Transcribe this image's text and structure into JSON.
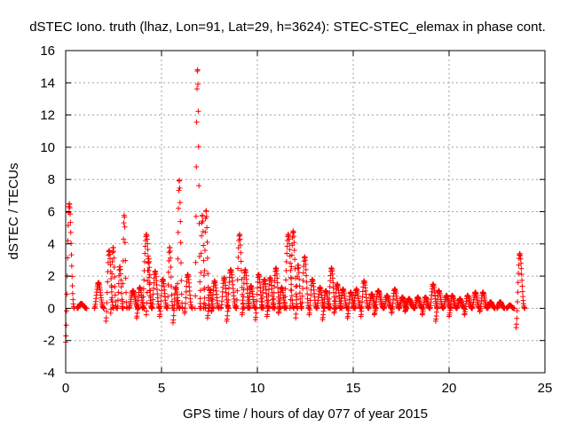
{
  "chart_data": {
    "type": "scatter",
    "title": "dSTEC Iono. truth (lhaz, Lon=91, Lat=29, h=3624): STEC-STEC_elemax in phase cont.",
    "xlabel": "GPS time / hours of day 077 of year 2015",
    "ylabel": "dSTEC  / TECUs",
    "xlim": [
      0,
      25
    ],
    "ylim": [
      -4,
      16
    ],
    "x_ticks": [
      0,
      5,
      10,
      15,
      20,
      25
    ],
    "y_ticks": [
      -4,
      -2,
      0,
      2,
      4,
      6,
      8,
      10,
      12,
      14,
      16
    ],
    "x_tick_labels": [
      "0",
      "5",
      "10",
      "15",
      "20",
      "25"
    ],
    "y_tick_labels": [
      "-4",
      "-2",
      "0",
      "2",
      "4",
      "6",
      "8",
      "10",
      "12",
      "14",
      "16"
    ],
    "grid": true,
    "marker": "+",
    "color": "#ff0000",
    "arcs": [
      {
        "t0": 0.0,
        "t1": 0.45,
        "y0": -2.1,
        "y1": 6.5
      },
      {
        "t0": 0.6,
        "t1": 1.1,
        "y0": 0.0,
        "y1": 0.3
      },
      {
        "t0": 1.5,
        "t1": 2.0,
        "y0": 0.0,
        "y1": 1.6
      },
      {
        "t0": 2.1,
        "t1": 2.5,
        "y0": -0.8,
        "y1": 3.6
      },
      {
        "t0": 2.35,
        "t1": 2.65,
        "y0": -0.3,
        "y1": 3.8
      },
      {
        "t0": 2.7,
        "t1": 3.0,
        "y0": 0.0,
        "y1": 2.6
      },
      {
        "t0": 2.95,
        "t1": 3.2,
        "y0": 0.0,
        "y1": 5.8
      },
      {
        "t0": 3.3,
        "t1": 3.8,
        "y0": 0.0,
        "y1": 1.1
      },
      {
        "t0": 3.7,
        "t1": 4.1,
        "y0": -0.6,
        "y1": 1.3
      },
      {
        "t0": 4.0,
        "t1": 4.5,
        "y0": 0.0,
        "y1": 4.6
      },
      {
        "t0": 4.2,
        "t1": 4.5,
        "y0": -0.4,
        "y1": 3.1
      },
      {
        "t0": 4.5,
        "t1": 4.9,
        "y0": 0.0,
        "y1": 2.3
      },
      {
        "t0": 4.9,
        "t1": 5.3,
        "y0": -0.5,
        "y1": 1.8
      },
      {
        "t0": 5.3,
        "t1": 5.6,
        "y0": 0.0,
        "y1": 3.8
      },
      {
        "t0": 5.6,
        "t1": 5.95,
        "y0": -0.9,
        "y1": 1.3
      },
      {
        "t0": 5.8,
        "t1": 6.1,
        "y0": 0.0,
        "y1": 8.0
      },
      {
        "t0": 6.2,
        "t1": 6.6,
        "y0": -0.3,
        "y1": 2.1
      },
      {
        "t0": 6.75,
        "t1": 7.05,
        "y0": 0.0,
        "y1": 14.9
      },
      {
        "t0": 7.0,
        "t1": 7.3,
        "y0": 0.0,
        "y1": 5.8
      },
      {
        "t0": 7.2,
        "t1": 7.5,
        "y0": 0.0,
        "y1": 6.1
      },
      {
        "t0": 7.4,
        "t1": 7.7,
        "y0": -0.6,
        "y1": 1.2
      },
      {
        "t0": 7.6,
        "t1": 8.0,
        "y0": -0.2,
        "y1": 1.7
      },
      {
        "t0": 8.1,
        "t1": 8.5,
        "y0": 0.0,
        "y1": 1.9
      },
      {
        "t0": 8.4,
        "t1": 8.9,
        "y0": -0.8,
        "y1": 2.4
      },
      {
        "t0": 8.9,
        "t1": 9.3,
        "y0": 0.0,
        "y1": 4.6
      },
      {
        "t0": 9.2,
        "t1": 9.6,
        "y0": -0.4,
        "y1": 2.4
      },
      {
        "t0": 9.5,
        "t1": 9.9,
        "y0": 0.0,
        "y1": 1.4
      },
      {
        "t0": 9.9,
        "t1": 10.3,
        "y0": -0.7,
        "y1": 2.1
      },
      {
        "t0": 10.2,
        "t1": 10.6,
        "y0": 0.0,
        "y1": 1.8
      },
      {
        "t0": 10.5,
        "t1": 10.9,
        "y0": -0.5,
        "y1": 1.9
      },
      {
        "t0": 10.8,
        "t1": 11.2,
        "y0": 0.0,
        "y1": 2.5
      },
      {
        "t0": 11.1,
        "t1": 11.5,
        "y0": -0.3,
        "y1": 1.3
      },
      {
        "t0": 11.4,
        "t1": 11.9,
        "y0": 0.0,
        "y1": 4.6
      },
      {
        "t0": 11.7,
        "t1": 12.1,
        "y0": 0.0,
        "y1": 4.8
      },
      {
        "t0": 12.0,
        "t1": 12.3,
        "y0": -0.6,
        "y1": 2.7
      },
      {
        "t0": 12.3,
        "t1": 12.7,
        "y0": 0.0,
        "y1": 3.2
      },
      {
        "t0": 12.7,
        "t1": 13.1,
        "y0": -0.4,
        "y1": 1.8
      },
      {
        "t0": 13.1,
        "t1": 13.5,
        "y0": 0.0,
        "y1": 1.3
      },
      {
        "t0": 13.4,
        "t1": 13.8,
        "y0": -0.7,
        "y1": 1.1
      },
      {
        "t0": 13.7,
        "t1": 14.1,
        "y0": 0.0,
        "y1": 2.5
      },
      {
        "t0": 14.0,
        "t1": 14.4,
        "y0": -0.3,
        "y1": 1.5
      },
      {
        "t0": 14.3,
        "t1": 14.7,
        "y0": 0.0,
        "y1": 1.2
      },
      {
        "t0": 14.7,
        "t1": 15.1,
        "y0": -0.6,
        "y1": 1.0
      },
      {
        "t0": 15.0,
        "t1": 15.4,
        "y0": 0.0,
        "y1": 1.2
      },
      {
        "t0": 15.4,
        "t1": 15.8,
        "y0": -0.5,
        "y1": 1.7
      },
      {
        "t0": 15.8,
        "t1": 16.2,
        "y0": 0.0,
        "y1": 0.9
      },
      {
        "t0": 16.1,
        "t1": 16.6,
        "y0": -0.4,
        "y1": 1.1
      },
      {
        "t0": 16.6,
        "t1": 17.0,
        "y0": 0.0,
        "y1": 0.8
      },
      {
        "t0": 17.0,
        "t1": 17.4,
        "y0": -0.3,
        "y1": 1.2
      },
      {
        "t0": 17.4,
        "t1": 17.8,
        "y0": 0.0,
        "y1": 0.7
      },
      {
        "t0": 17.7,
        "t1": 18.2,
        "y0": -0.2,
        "y1": 0.6
      },
      {
        "t0": 18.2,
        "t1": 18.6,
        "y0": 0.0,
        "y1": 0.7
      },
      {
        "t0": 18.6,
        "t1": 19.0,
        "y0": -0.4,
        "y1": 0.7
      },
      {
        "t0": 19.0,
        "t1": 19.4,
        "y0": 0.0,
        "y1": 1.5
      },
      {
        "t0": 19.3,
        "t1": 19.7,
        "y0": -0.8,
        "y1": 1.1
      },
      {
        "t0": 19.7,
        "t1": 20.1,
        "y0": 0.0,
        "y1": 0.8
      },
      {
        "t0": 20.0,
        "t1": 20.4,
        "y0": -0.5,
        "y1": 0.8
      },
      {
        "t0": 20.4,
        "t1": 20.8,
        "y0": 0.0,
        "y1": 0.6
      },
      {
        "t0": 20.8,
        "t1": 21.2,
        "y0": -0.4,
        "y1": 0.8
      },
      {
        "t0": 21.2,
        "t1": 21.6,
        "y0": 0.0,
        "y1": 1.0
      },
      {
        "t0": 21.6,
        "t1": 22.0,
        "y0": -0.2,
        "y1": 1.0
      },
      {
        "t0": 22.0,
        "t1": 22.4,
        "y0": 0.0,
        "y1": 0.4
      },
      {
        "t0": 22.5,
        "t1": 22.9,
        "y0": 0.0,
        "y1": 0.4
      },
      {
        "t0": 23.0,
        "t1": 23.4,
        "y0": 0.0,
        "y1": 0.2
      },
      {
        "t0": 23.5,
        "t1": 23.95,
        "y0": -1.2,
        "y1": 3.4
      }
    ]
  }
}
